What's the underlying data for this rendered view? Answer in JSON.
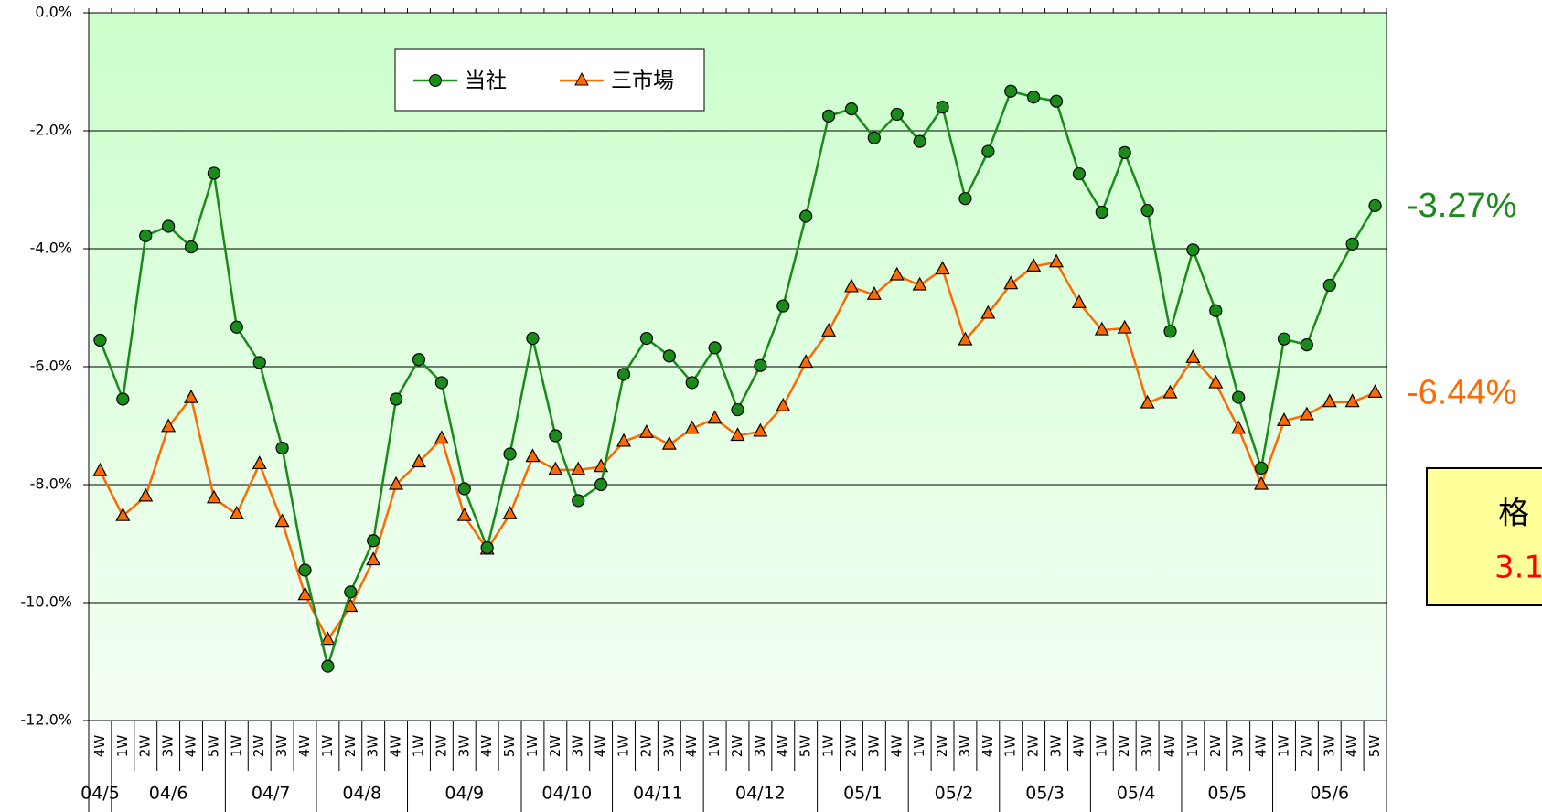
{
  "chart_data": {
    "type": "line",
    "categories": [
      "4W",
      "1W",
      "2W",
      "3W",
      "4W",
      "5W",
      "1W",
      "2W",
      "3W",
      "4W",
      "1W",
      "2W",
      "3W",
      "4W",
      "1W",
      "2W",
      "3W",
      "4W",
      "5W",
      "1W",
      "2W",
      "3W",
      "4W",
      "1W",
      "2W",
      "3W",
      "4W",
      "1W",
      "2W",
      "3W",
      "4W",
      "5W",
      "1W",
      "2W",
      "3W",
      "4W",
      "1W",
      "2W",
      "3W",
      "4W",
      "1W",
      "2W",
      "3W",
      "4W",
      "1W",
      "2W",
      "3W",
      "4W",
      "1W",
      "2W",
      "3W",
      "4W",
      "1W",
      "2W",
      "3W",
      "4W",
      "5W"
    ],
    "month_labels": [
      "04/5",
      "04/6",
      null,
      null,
      null,
      null,
      "04/7",
      null,
      null,
      null,
      "04/8",
      null,
      null,
      null,
      "04/9",
      null,
      null,
      null,
      null,
      "04/10",
      null,
      null,
      null,
      "04/11",
      null,
      null,
      null,
      "04/12",
      null,
      null,
      null,
      null,
      "05/1",
      null,
      null,
      null,
      "05/2",
      null,
      null,
      null,
      "05/3",
      null,
      null,
      null,
      "05/4",
      null,
      null,
      null,
      "05/5",
      null,
      null,
      null,
      "05/6",
      null,
      null,
      null,
      null
    ],
    "series": [
      {
        "name": "当社",
        "color": "#1a8a1a",
        "marker": "circle",
        "end_label": "-3.27%",
        "values": [
          -5.55,
          -6.55,
          -3.78,
          -3.62,
          -3.97,
          -2.72,
          -5.33,
          -5.93,
          -7.38,
          -9.45,
          -11.08,
          -9.82,
          -8.95,
          -6.55,
          -5.88,
          -6.27,
          -8.07,
          -9.07,
          -7.48,
          -5.52,
          -7.17,
          -8.27,
          -8.0,
          -6.13,
          -5.52,
          -5.82,
          -6.27,
          -5.68,
          -6.73,
          -5.98,
          -4.97,
          -3.45,
          -1.75,
          -1.63,
          -2.12,
          -1.72,
          -2.18,
          -1.6,
          -3.15,
          -2.35,
          -1.33,
          -1.43,
          -1.5,
          -2.73,
          -3.38,
          -2.37,
          -3.35,
          -5.4,
          -4.02,
          -5.05,
          -6.52,
          -7.72,
          -5.53,
          -5.63,
          -4.62,
          -3.92,
          -3.27
        ]
      },
      {
        "name": "三市場",
        "color": "#ff6a00",
        "marker": "triangle",
        "end_label": "-6.44%",
        "values": [
          -7.77,
          -8.53,
          -8.2,
          -7.02,
          -6.53,
          -8.23,
          -8.5,
          -7.65,
          -8.63,
          -9.87,
          -10.63,
          -10.07,
          -9.28,
          -8.0,
          -7.62,
          -7.22,
          -8.53,
          -9.1,
          -8.5,
          -7.53,
          -7.75,
          -7.75,
          -7.7,
          -7.27,
          -7.12,
          -7.32,
          -7.05,
          -6.88,
          -7.17,
          -7.1,
          -6.67,
          -5.93,
          -5.4,
          -4.65,
          -4.78,
          -4.45,
          -4.62,
          -4.35,
          -5.55,
          -5.1,
          -4.6,
          -4.3,
          -4.23,
          -4.92,
          -5.38,
          -5.35,
          -6.62,
          -6.45,
          -5.85,
          -6.28,
          -7.05,
          -8.0,
          -6.92,
          -6.82,
          -6.6,
          -6.6,
          -6.44
        ]
      }
    ],
    "ylim": [
      -12,
      0
    ],
    "yticks": [
      {
        "value": 0,
        "label": "0.0%"
      },
      {
        "value": -2,
        "label": "-2.0%"
      },
      {
        "value": -4,
        "label": "-4.0%"
      },
      {
        "value": -6,
        "label": "-6.0%"
      },
      {
        "value": -8,
        "label": "-8.0%"
      },
      {
        "value": -10,
        "label": "-10.0%"
      },
      {
        "value": -12,
        "label": "-12.0%"
      }
    ],
    "grid": true,
    "legend": "top-left",
    "annotation_box": {
      "line1": "格",
      "line2": "3.1"
    }
  }
}
